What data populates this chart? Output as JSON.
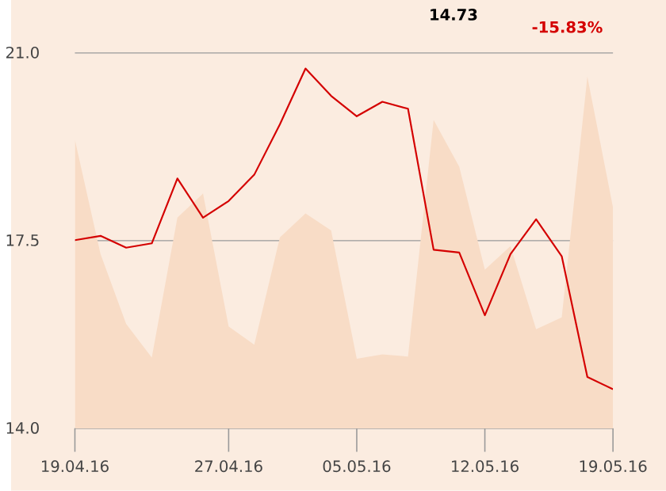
{
  "chart_data": {
    "type": "line",
    "categories": [
      "19.04.16",
      null,
      null,
      null,
      null,
      null,
      "27.04.16",
      null,
      null,
      null,
      null,
      "05.05.16",
      null,
      null,
      null,
      null,
      "12.05.16",
      null,
      null,
      null,
      null,
      "19.05.16"
    ],
    "series": [
      {
        "type": "area",
        "color": "#f8dcc6",
        "values": [
          19.38,
          17.25,
          15.95,
          15.32,
          17.93,
          18.38,
          15.9,
          15.56,
          17.56,
          18.01,
          17.69,
          15.3,
          15.38,
          15.34,
          19.75,
          18.88,
          16.96,
          17.4,
          15.85,
          16.07,
          20.56,
          18.12
        ]
      },
      {
        "color": "#d40000",
        "values": [
          17.51,
          17.59,
          17.37,
          17.45,
          18.66,
          17.93,
          18.24,
          18.73,
          19.67,
          20.71,
          20.2,
          19.82,
          20.09,
          19.96,
          17.33,
          17.28,
          16.11,
          17.25,
          17.9,
          17.21,
          14.96,
          14.73
        ]
      }
    ],
    "ylim": [
      14,
      21
    ],
    "yticks": [
      {
        "value": 14,
        "label": "14.0"
      },
      {
        "value": 17.5,
        "label": "17.5"
      },
      {
        "value": 21,
        "label": "21.0"
      }
    ],
    "grid": "y",
    "annotations": [
      "14.73",
      "-15.83%"
    ]
  }
}
